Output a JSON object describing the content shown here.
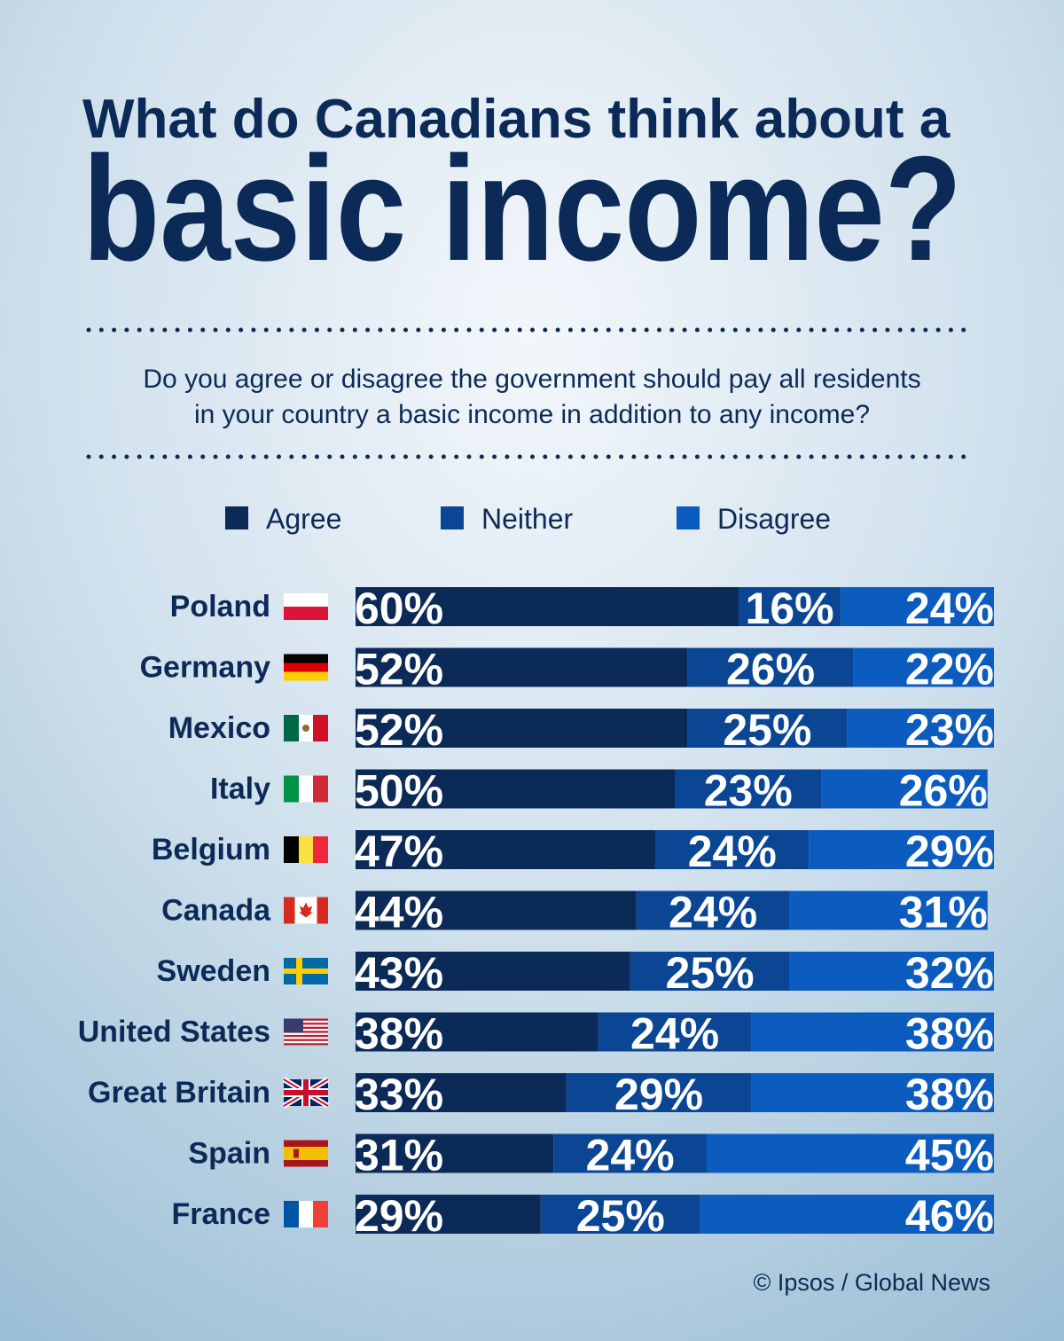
{
  "chart_data": {
    "type": "bar",
    "orientation": "horizontal",
    "stacked": true,
    "title_lines": [
      "What do Canadians think about a",
      "basic income?"
    ],
    "subtitle_lines": [
      "Do you agree or disagree the government should pay all residents",
      "in your country a basic income in addition to any income?"
    ],
    "source": "© Ipsos / Global News",
    "categories": [
      "Poland",
      "Germany",
      "Mexico",
      "Italy",
      "Belgium",
      "Canada",
      "Sweden",
      "United States",
      "Great Britain",
      "Spain",
      "France"
    ],
    "xlim": [
      0,
      100
    ],
    "series": [
      {
        "name": "Agree",
        "color": "#0b2a57",
        "values": [
          60,
          52,
          52,
          50,
          47,
          44,
          43,
          38,
          33,
          31,
          29
        ],
        "value_labels": [
          "60%",
          "52%",
          "52%",
          "50%",
          "47%",
          "44%",
          "43%",
          "38%",
          "33%",
          "31%",
          "29%"
        ]
      },
      {
        "name": "Neither",
        "color": "#0a4694",
        "values": [
          16,
          26,
          25,
          23,
          24,
          24,
          25,
          24,
          29,
          24,
          25
        ],
        "value_labels": [
          "16%",
          "26%",
          "25%",
          "23%",
          "24%",
          "24%",
          "25%",
          "24%",
          "29%",
          "24%",
          "25%"
        ]
      },
      {
        "name": "Disagree",
        "color": "#0c5cc0",
        "values": [
          24,
          22,
          23,
          26,
          29,
          31,
          32,
          38,
          38,
          45,
          46
        ],
        "value_labels": [
          "24%",
          "22%",
          "23%",
          "26%",
          "29%",
          "31%",
          "32%",
          "38%",
          "38%",
          "45%",
          "46%"
        ]
      }
    ]
  }
}
